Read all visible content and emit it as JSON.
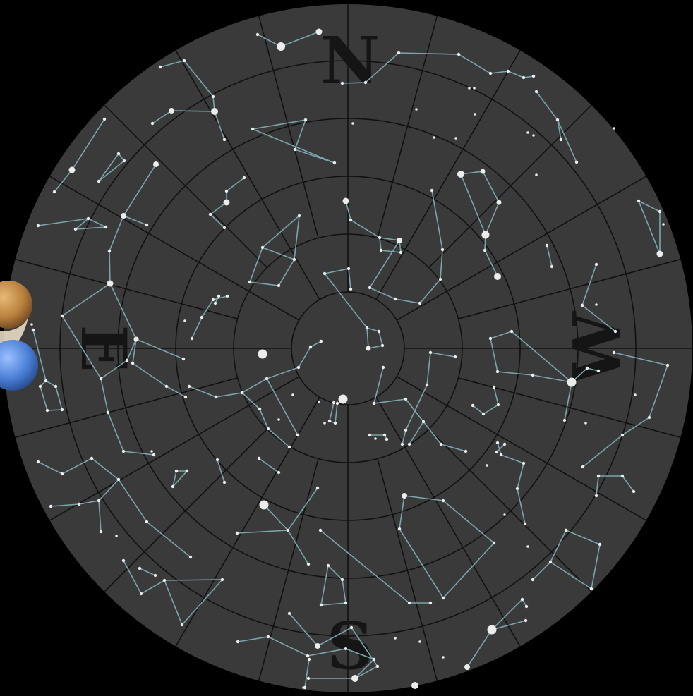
{
  "chart": {
    "cardinals": {
      "north": "N",
      "south": "S",
      "east": "E",
      "west": "W"
    },
    "colors": {
      "background": "#000000",
      "sky_disc": "#3a3a3a",
      "grid_lines": "#111111",
      "constellation_lines": "#7aa5ad",
      "stars": "#ececec",
      "cardinal_letters": "#151515"
    },
    "planets": [
      {
        "name": "planet-brown",
        "color": "#c08a45"
      },
      {
        "name": "planet-blue",
        "color": "#4a7fd6"
      }
    ]
  }
}
